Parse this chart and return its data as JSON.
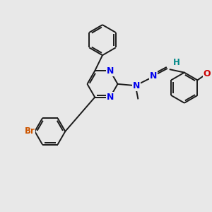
{
  "bg": "#e8e8e8",
  "bond_color": "#1a1a1a",
  "N_color": "#0000ee",
  "Br_color": "#cc5500",
  "O_color": "#cc0000",
  "H_color": "#008888",
  "lw": 1.4,
  "dbs": 0.055,
  "xlim": [
    -3.0,
    3.2
  ],
  "ylim": [
    -3.2,
    3.0
  ]
}
